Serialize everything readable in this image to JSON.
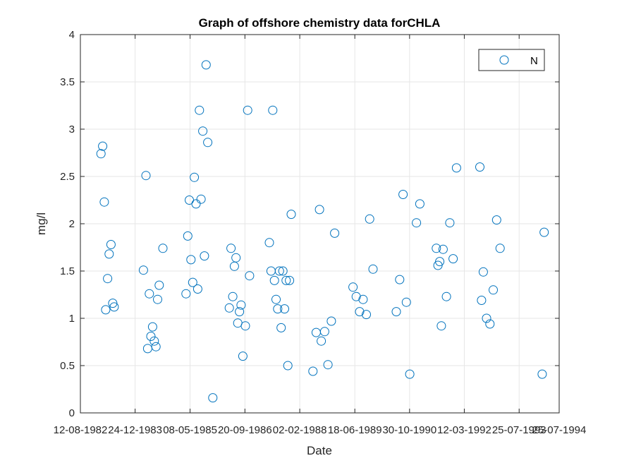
{
  "chart_data": {
    "type": "scatter",
    "title": "Graph of offshore chemistry data forCHLA",
    "xlabel": "Date",
    "ylabel": "mg/l",
    "ylim": [
      0,
      4
    ],
    "xlim": [
      "1982-08-12",
      "1994-07-25"
    ],
    "yticks": [
      "0",
      "0.5",
      "1",
      "1.5",
      "2",
      "2.5",
      "3",
      "3.5",
      "4"
    ],
    "xticks": [
      "12-08-1982",
      "24-12-1983",
      "08-05-1985",
      "20-09-1986",
      "02-02-1988",
      "18-06-1989",
      "30-10-1990",
      "12-03-1992",
      "25-07-1993",
      "25-07-1994"
    ],
    "grid": true,
    "legend": {
      "placement": "top-right",
      "entries": [
        "N"
      ]
    },
    "marker_color": "#0072BD",
    "series": [
      {
        "name": "N",
        "points": [
          [
            "1983-02-16",
            2.74
          ],
          [
            "1983-03-03",
            2.82
          ],
          [
            "1983-03-18",
            2.23
          ],
          [
            "1983-03-31",
            1.09
          ],
          [
            "1983-04-17",
            1.42
          ],
          [
            "1983-05-01",
            1.68
          ],
          [
            "1983-05-18",
            1.78
          ],
          [
            "1983-06-03",
            1.16
          ],
          [
            "1983-06-16",
            1.12
          ],
          [
            "1984-03-09",
            1.51
          ],
          [
            "1984-04-01",
            2.51
          ],
          [
            "1984-04-16",
            0.68
          ],
          [
            "1984-05-02",
            1.26
          ],
          [
            "1984-05-16",
            0.81
          ],
          [
            "1984-05-31",
            0.91
          ],
          [
            "1984-06-16",
            0.76
          ],
          [
            "1984-07-01",
            0.7
          ],
          [
            "1984-07-16",
            1.2
          ],
          [
            "1984-07-31",
            1.35
          ],
          [
            "1984-09-02",
            1.74
          ],
          [
            "1985-04-01",
            1.26
          ],
          [
            "1985-04-17",
            1.87
          ],
          [
            "1985-05-01",
            2.25
          ],
          [
            "1985-05-16",
            1.62
          ],
          [
            "1985-06-01",
            1.38
          ],
          [
            "1985-06-16",
            2.49
          ],
          [
            "1985-07-01",
            2.21
          ],
          [
            "1985-07-17",
            1.31
          ],
          [
            "1985-08-01",
            3.2
          ],
          [
            "1985-08-16",
            2.26
          ],
          [
            "1985-09-01",
            2.98
          ],
          [
            "1985-09-16",
            1.66
          ],
          [
            "1985-10-01",
            3.68
          ],
          [
            "1985-10-16",
            2.86
          ],
          [
            "1985-12-01",
            0.16
          ],
          [
            "1986-05-01",
            1.11
          ],
          [
            "1986-05-16",
            1.74
          ],
          [
            "1986-06-01",
            1.23
          ],
          [
            "1986-06-16",
            1.55
          ],
          [
            "1986-07-01",
            1.64
          ],
          [
            "1986-07-17",
            0.95
          ],
          [
            "1986-08-01",
            1.07
          ],
          [
            "1986-08-16",
            1.14
          ],
          [
            "1986-09-01",
            0.6
          ],
          [
            "1986-09-24",
            0.92
          ],
          [
            "1986-10-15",
            3.2
          ],
          [
            "1986-11-01",
            1.45
          ],
          [
            "1987-05-01",
            1.8
          ],
          [
            "1987-05-16",
            1.5
          ],
          [
            "1987-06-01",
            3.2
          ],
          [
            "1987-06-16",
            1.4
          ],
          [
            "1987-07-01",
            1.2
          ],
          [
            "1987-07-16",
            1.1
          ],
          [
            "1987-08-01",
            1.5
          ],
          [
            "1987-08-16",
            0.9
          ],
          [
            "1987-09-01",
            1.5
          ],
          [
            "1987-09-16",
            1.1
          ],
          [
            "1987-10-01",
            1.4
          ],
          [
            "1987-10-16",
            0.5
          ],
          [
            "1987-11-01",
            1.4
          ],
          [
            "1987-11-16",
            2.1
          ],
          [
            "1988-06-01",
            0.44
          ],
          [
            "1988-07-01",
            0.85
          ],
          [
            "1988-07-31",
            2.15
          ],
          [
            "1988-08-16",
            0.76
          ],
          [
            "1988-09-16",
            0.86
          ],
          [
            "1988-10-16",
            0.51
          ],
          [
            "1988-11-16",
            0.97
          ],
          [
            "1988-12-16",
            1.9
          ],
          [
            "1989-06-01",
            1.33
          ],
          [
            "1989-07-01",
            1.23
          ],
          [
            "1989-08-01",
            1.07
          ],
          [
            "1989-09-01",
            1.2
          ],
          [
            "1989-10-01",
            1.04
          ],
          [
            "1989-10-31",
            2.05
          ],
          [
            "1989-12-01",
            1.52
          ],
          [
            "1990-07-01",
            1.07
          ],
          [
            "1990-08-01",
            1.41
          ],
          [
            "1990-09-01",
            2.31
          ],
          [
            "1990-10-01",
            1.17
          ],
          [
            "1990-11-01",
            0.41
          ],
          [
            "1991-01-01",
            2.01
          ],
          [
            "1991-02-01",
            2.21
          ],
          [
            "1991-07-01",
            1.74
          ],
          [
            "1991-07-16",
            1.56
          ],
          [
            "1991-08-01",
            1.6
          ],
          [
            "1991-08-16",
            0.92
          ],
          [
            "1991-09-01",
            1.73
          ],
          [
            "1991-10-01",
            1.23
          ],
          [
            "1991-11-01",
            2.01
          ],
          [
            "1991-12-01",
            1.63
          ],
          [
            "1992-01-01",
            2.59
          ],
          [
            "1992-08-01",
            2.6
          ],
          [
            "1992-08-16",
            1.19
          ],
          [
            "1992-09-01",
            1.49
          ],
          [
            "1992-10-01",
            1.0
          ],
          [
            "1992-11-01",
            0.94
          ],
          [
            "1992-12-01",
            1.3
          ],
          [
            "1993-01-01",
            2.04
          ],
          [
            "1993-02-01",
            1.74
          ],
          [
            "1994-02-20",
            0.41
          ],
          [
            "1994-03-10",
            1.91
          ]
        ]
      }
    ]
  }
}
